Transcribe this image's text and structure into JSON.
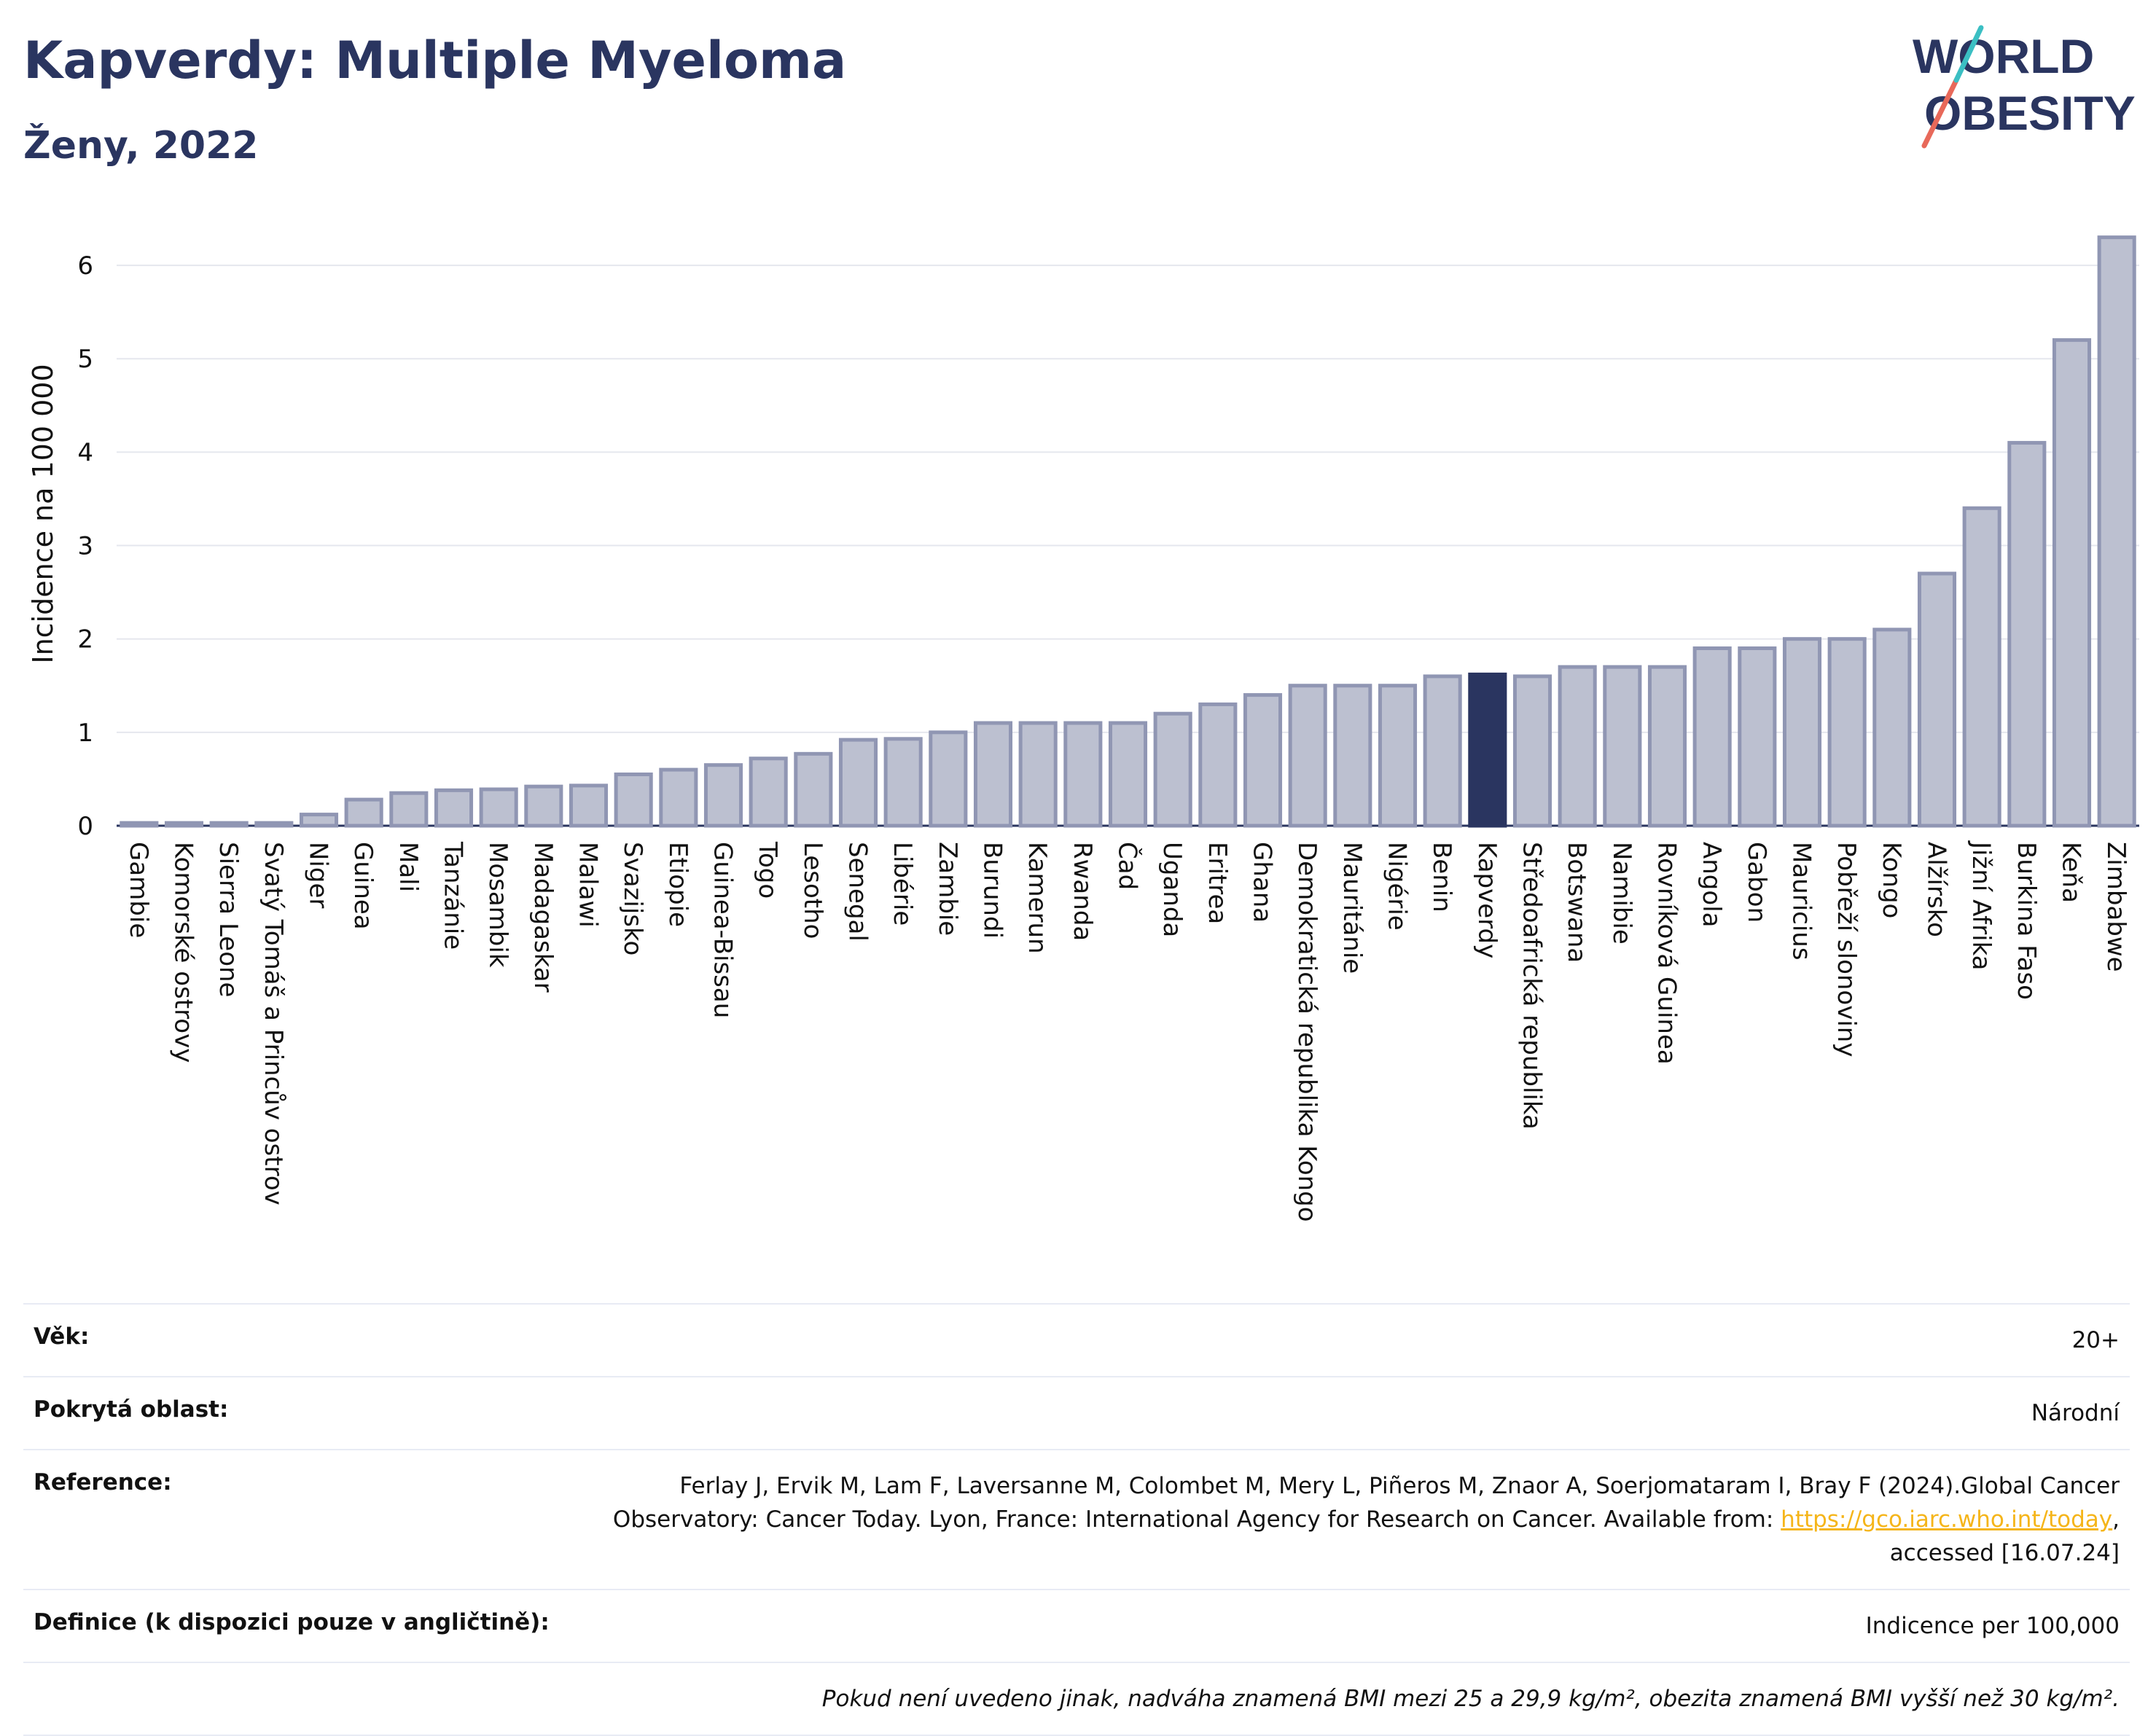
{
  "header": {
    "title": "Kapverdy: Multiple Myeloma",
    "subtitle": "Ženy, 2022"
  },
  "logo": {
    "line1": "WORLD",
    "line2": "OBESITY",
    "name": "world-obesity-logo"
  },
  "chart_data": {
    "type": "bar",
    "title": "Kapverdy: Multiple Myeloma",
    "subtitle": "Ženy, 2022",
    "xlabel": "",
    "ylabel": "Incidence na 100 000",
    "ylim": [
      0,
      6.5
    ],
    "yticks": [
      0,
      1,
      2,
      3,
      4,
      5,
      6
    ],
    "grid": true,
    "highlight": "Kapverdy",
    "colors": {
      "bar": "#bcc0d0",
      "bar_edge": "#9096b3",
      "highlight": "#2a3560",
      "grid": "#e5e7ee"
    },
    "categories": [
      "Gambie",
      "Komorské ostrovy",
      "Sierra Leone",
      "Svatý Tomáš a Princův ostrov",
      "Niger",
      "Guinea",
      "Mali",
      "Tanzánie",
      "Mosambik",
      "Madagaskar",
      "Malawi",
      "Svazijsko",
      "Etiopie",
      "Guinea-Bissau",
      "Togo",
      "Lesotho",
      "Senegal",
      "Libérie",
      "Zambie",
      "Burundi",
      "Kamerun",
      "Rwanda",
      "Čad",
      "Uganda",
      "Eritrea",
      "Ghana",
      "Demokratická republika Kongo",
      "Mauritánie",
      "Nigérie",
      "Benin",
      "Kapverdy",
      "Středoafrická republika",
      "Botswana",
      "Namibie",
      "Rovníková Guinea",
      "Angola",
      "Gabon",
      "Mauricius",
      "Pobřeží slonoviny",
      "Kongo",
      "Alžírsko",
      "Jižní Afrika",
      "Burkina Faso",
      "Keňa",
      "Zimbabwe"
    ],
    "values": [
      0.03,
      0.03,
      0.03,
      0.03,
      0.12,
      0.28,
      0.35,
      0.38,
      0.39,
      0.42,
      0.43,
      0.55,
      0.6,
      0.65,
      0.72,
      0.77,
      0.92,
      0.93,
      1.0,
      1.1,
      1.1,
      1.1,
      1.1,
      1.2,
      1.3,
      1.4,
      1.5,
      1.5,
      1.5,
      1.6,
      1.62,
      1.6,
      1.7,
      1.7,
      1.7,
      1.9,
      1.9,
      2.0,
      2.0,
      2.1,
      2.7,
      3.4,
      4.1,
      5.2,
      6.3
    ]
  },
  "info": {
    "age_label": "Věk:",
    "age_value": "20+",
    "area_label": "Pokrytá oblast:",
    "area_value": "Národní",
    "reference_label": "Reference:",
    "reference_text": "Ferlay J, Ervik M, Lam F, Laversanne M, Colombet M, Mery L, Piñeros M, Znaor A, Soerjomataram I, Bray F (2024).Global Cancer Observatory: Cancer Today. Lyon, France: International Agency for Research on Cancer. Available from: ",
    "reference_link": "https://gco.iarc.who.int/today",
    "reference_suffix": ", accessed [16.07.24]",
    "definition_label": "Definice (k dispozici pouze v angličtině):",
    "definition_value": "Indicence per 100,000",
    "note": "Pokud není uvedeno jinak, nadváha znamená BMI mezi 25 a 29,9 kg/m², obezita znamená BMI vyšší než 30 kg/m²."
  }
}
